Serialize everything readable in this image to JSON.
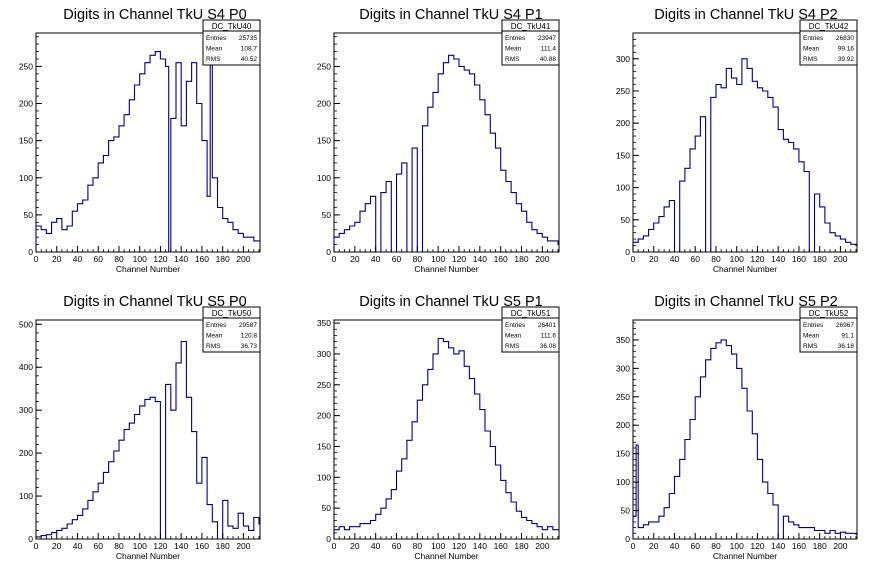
{
  "line_color": "#00008b",
  "chart_data": [
    {
      "type": "bar",
      "title": "Digits in Channel TkU S4 P0",
      "xlabel": "Channel Number",
      "ylabel": "",
      "xlim": [
        0,
        216
      ],
      "ylim": [
        0,
        295
      ],
      "xticks": [
        0,
        20,
        40,
        60,
        80,
        100,
        120,
        140,
        160,
        180,
        200
      ],
      "yticks": [
        0,
        50,
        100,
        150,
        200,
        250
      ],
      "stats": {
        "name": "DC_TkU40",
        "entries_label": "Entries",
        "entries": "25735",
        "mean_label": "Mean",
        "mean": "108.7",
        "rms_label": "RMS",
        "rms": "40.52"
      },
      "x": [
        0,
        5,
        10,
        15,
        20,
        25,
        30,
        35,
        40,
        45,
        50,
        55,
        60,
        65,
        70,
        75,
        80,
        85,
        90,
        95,
        100,
        105,
        110,
        115,
        120,
        125,
        128,
        130,
        135,
        140,
        145,
        150,
        155,
        160,
        165,
        168,
        170,
        175,
        180,
        185,
        190,
        195,
        200,
        205,
        210,
        215
      ],
      "values": [
        35,
        30,
        25,
        40,
        45,
        30,
        35,
        55,
        65,
        70,
        90,
        100,
        120,
        130,
        150,
        155,
        170,
        185,
        205,
        225,
        240,
        255,
        265,
        270,
        260,
        250,
        0,
        180,
        255,
        170,
        230,
        255,
        200,
        150,
        75,
        265,
        100,
        60,
        45,
        40,
        30,
        25,
        20,
        20,
        15,
        15
      ]
    },
    {
      "type": "bar",
      "title": "Digits in Channel TkU S4 P1",
      "xlabel": "Channel Number",
      "ylabel": "",
      "xlim": [
        0,
        216
      ],
      "ylim": [
        0,
        295
      ],
      "xticks": [
        0,
        20,
        40,
        60,
        80,
        100,
        120,
        140,
        160,
        180,
        200
      ],
      "yticks": [
        0,
        50,
        100,
        150,
        200,
        250
      ],
      "stats": {
        "name": "DC_TkU41",
        "entries_label": "Entries",
        "entries": "23947",
        "mean_label": "Mean",
        "mean": "111.4",
        "rms_label": "RMS",
        "rms": "40.88"
      },
      "x": [
        0,
        5,
        10,
        15,
        20,
        25,
        30,
        35,
        40,
        45,
        50,
        55,
        60,
        65,
        70,
        75,
        80,
        85,
        90,
        95,
        100,
        105,
        110,
        115,
        120,
        125,
        130,
        135,
        140,
        145,
        150,
        155,
        160,
        165,
        170,
        175,
        180,
        185,
        190,
        195,
        200,
        205,
        210,
        215
      ],
      "values": [
        20,
        25,
        30,
        35,
        40,
        55,
        65,
        75,
        0,
        80,
        95,
        0,
        105,
        120,
        0,
        140,
        0,
        170,
        195,
        215,
        240,
        255,
        265,
        260,
        250,
        245,
        240,
        225,
        205,
        185,
        160,
        140,
        110,
        95,
        80,
        65,
        55,
        40,
        30,
        25,
        20,
        15,
        15,
        10
      ]
    },
    {
      "type": "bar",
      "title": "Digits in Channel TkU S4 P2",
      "xlabel": "Channel Number",
      "ylabel": "",
      "xlim": [
        0,
        216
      ],
      "ylim": [
        0,
        340
      ],
      "xticks": [
        0,
        20,
        40,
        60,
        80,
        100,
        120,
        140,
        160,
        180,
        200
      ],
      "yticks": [
        0,
        50,
        100,
        150,
        200,
        250,
        300
      ],
      "stats": {
        "name": "DC_TkU42",
        "entries_label": "Entries",
        "entries": "26830",
        "mean_label": "Mean",
        "mean": "99.16",
        "rms_label": "RMS",
        "rms": "39.92"
      },
      "x": [
        0,
        5,
        10,
        15,
        20,
        25,
        30,
        35,
        40,
        45,
        50,
        55,
        60,
        65,
        70,
        75,
        80,
        85,
        90,
        95,
        100,
        105,
        110,
        115,
        120,
        125,
        130,
        135,
        140,
        145,
        150,
        155,
        160,
        165,
        170,
        175,
        180,
        185,
        190,
        195,
        200,
        205,
        210,
        215
      ],
      "values": [
        15,
        20,
        25,
        35,
        45,
        55,
        70,
        80,
        0,
        110,
        130,
        160,
        180,
        210,
        0,
        240,
        260,
        255,
        285,
        270,
        260,
        300,
        285,
        265,
        255,
        250,
        240,
        225,
        190,
        175,
        170,
        160,
        140,
        125,
        0,
        90,
        70,
        45,
        30,
        25,
        20,
        15,
        12,
        10
      ]
    },
    {
      "type": "bar",
      "title": "Digits in Channel TkU S5 P0",
      "xlabel": "Channel Number",
      "ylabel": "",
      "xlim": [
        0,
        216
      ],
      "ylim": [
        0,
        510
      ],
      "xticks": [
        0,
        20,
        40,
        60,
        80,
        100,
        120,
        140,
        160,
        180,
        200
      ],
      "yticks": [
        0,
        100,
        200,
        300,
        400,
        500
      ],
      "stats": {
        "name": "DC_TkU50",
        "entries_label": "Entries",
        "entries": "29587",
        "mean_label": "Mean",
        "mean": "120.8",
        "rms_label": "RMS",
        "rms": "36.73"
      },
      "x": [
        0,
        5,
        10,
        15,
        20,
        25,
        30,
        35,
        40,
        45,
        50,
        55,
        60,
        65,
        70,
        75,
        80,
        85,
        90,
        95,
        100,
        105,
        110,
        115,
        120,
        125,
        130,
        135,
        140,
        145,
        150,
        155,
        160,
        165,
        170,
        175,
        180,
        185,
        190,
        195,
        200,
        205,
        210,
        215
      ],
      "values": [
        5,
        8,
        10,
        15,
        20,
        25,
        35,
        45,
        55,
        70,
        90,
        110,
        130,
        155,
        180,
        205,
        230,
        255,
        270,
        290,
        310,
        325,
        330,
        320,
        0,
        360,
        300,
        410,
        460,
        330,
        250,
        130,
        190,
        80,
        40,
        0,
        90,
        30,
        25,
        60,
        30,
        20,
        50,
        35
      ]
    },
    {
      "type": "bar",
      "title": "Digits in Channel TkU S5 P1",
      "xlabel": "Channel Number",
      "ylabel": "",
      "xlim": [
        0,
        216
      ],
      "ylim": [
        0,
        355
      ],
      "xticks": [
        0,
        20,
        40,
        60,
        80,
        100,
        120,
        140,
        160,
        180,
        200
      ],
      "yticks": [
        0,
        50,
        100,
        150,
        200,
        250,
        300,
        350
      ],
      "stats": {
        "name": "DC_TkU51",
        "entries_label": "Entries",
        "entries": "26401",
        "mean_label": "Mean",
        "mean": "111.6",
        "rms_label": "RMS",
        "rms": "36.08"
      },
      "x": [
        0,
        5,
        10,
        15,
        20,
        25,
        30,
        35,
        40,
        45,
        50,
        55,
        60,
        65,
        70,
        75,
        80,
        85,
        90,
        95,
        100,
        105,
        110,
        115,
        120,
        125,
        130,
        135,
        140,
        145,
        150,
        155,
        160,
        165,
        170,
        175,
        180,
        185,
        190,
        195,
        200,
        205,
        210,
        215
      ],
      "values": [
        15,
        20,
        15,
        20,
        20,
        25,
        25,
        30,
        40,
        50,
        65,
        80,
        110,
        130,
        160,
        190,
        225,
        250,
        275,
        300,
        325,
        320,
        310,
        300,
        305,
        280,
        260,
        235,
        210,
        175,
        150,
        120,
        95,
        75,
        60,
        45,
        35,
        30,
        25,
        20,
        15,
        20,
        15,
        15
      ]
    },
    {
      "type": "bar",
      "title": "Digits in Channel TkU S5 P2",
      "xlabel": "Channel Number",
      "ylabel": "",
      "xlim": [
        0,
        216
      ],
      "ylim": [
        0,
        385
      ],
      "xticks": [
        0,
        20,
        40,
        60,
        80,
        100,
        120,
        140,
        160,
        180,
        200
      ],
      "yticks": [
        0,
        50,
        100,
        150,
        200,
        250,
        300,
        350
      ],
      "stats": {
        "name": "DC_TkU52",
        "entries_label": "Entries",
        "entries": "26967",
        "mean_label": "Mean",
        "mean": "91.1",
        "rms_label": "RMS",
        "rms": "36.18"
      },
      "x": [
        0,
        3,
        5,
        10,
        15,
        20,
        25,
        30,
        35,
        40,
        45,
        50,
        55,
        60,
        65,
        70,
        75,
        80,
        85,
        90,
        95,
        100,
        105,
        110,
        115,
        120,
        125,
        130,
        135,
        140,
        145,
        150,
        155,
        160,
        165,
        170,
        175,
        180,
        185,
        190,
        195,
        200,
        205,
        210,
        215
      ],
      "values": [
        40,
        165,
        20,
        25,
        30,
        30,
        40,
        55,
        80,
        110,
        140,
        175,
        210,
        250,
        285,
        315,
        335,
        345,
        350,
        340,
        325,
        300,
        265,
        225,
        185,
        140,
        100,
        80,
        60,
        0,
        40,
        30,
        25,
        20,
        20,
        20,
        15,
        15,
        10,
        15,
        10,
        12,
        10,
        10,
        8
      ]
    }
  ]
}
